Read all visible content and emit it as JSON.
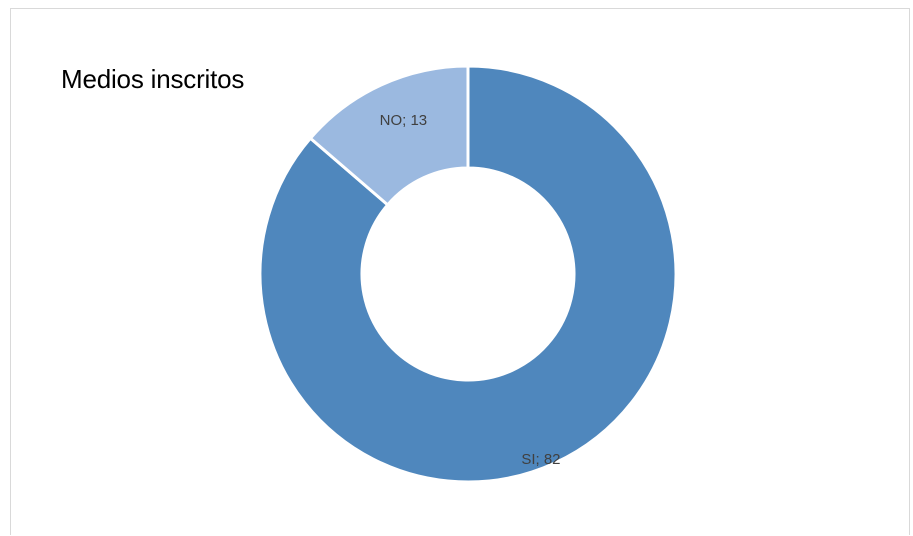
{
  "chart_data": {
    "type": "pie",
    "variant": "doughnut",
    "title": "Medios inscritos",
    "slices": [
      {
        "category": "SI",
        "value": 82,
        "label": "SI; 82",
        "color": "#4f87bd"
      },
      {
        "category": "NO",
        "value": 13,
        "label": "NO; 13",
        "color": "#9bb9e0"
      }
    ],
    "legend": "none",
    "slice_border_color": "#ffffff"
  }
}
